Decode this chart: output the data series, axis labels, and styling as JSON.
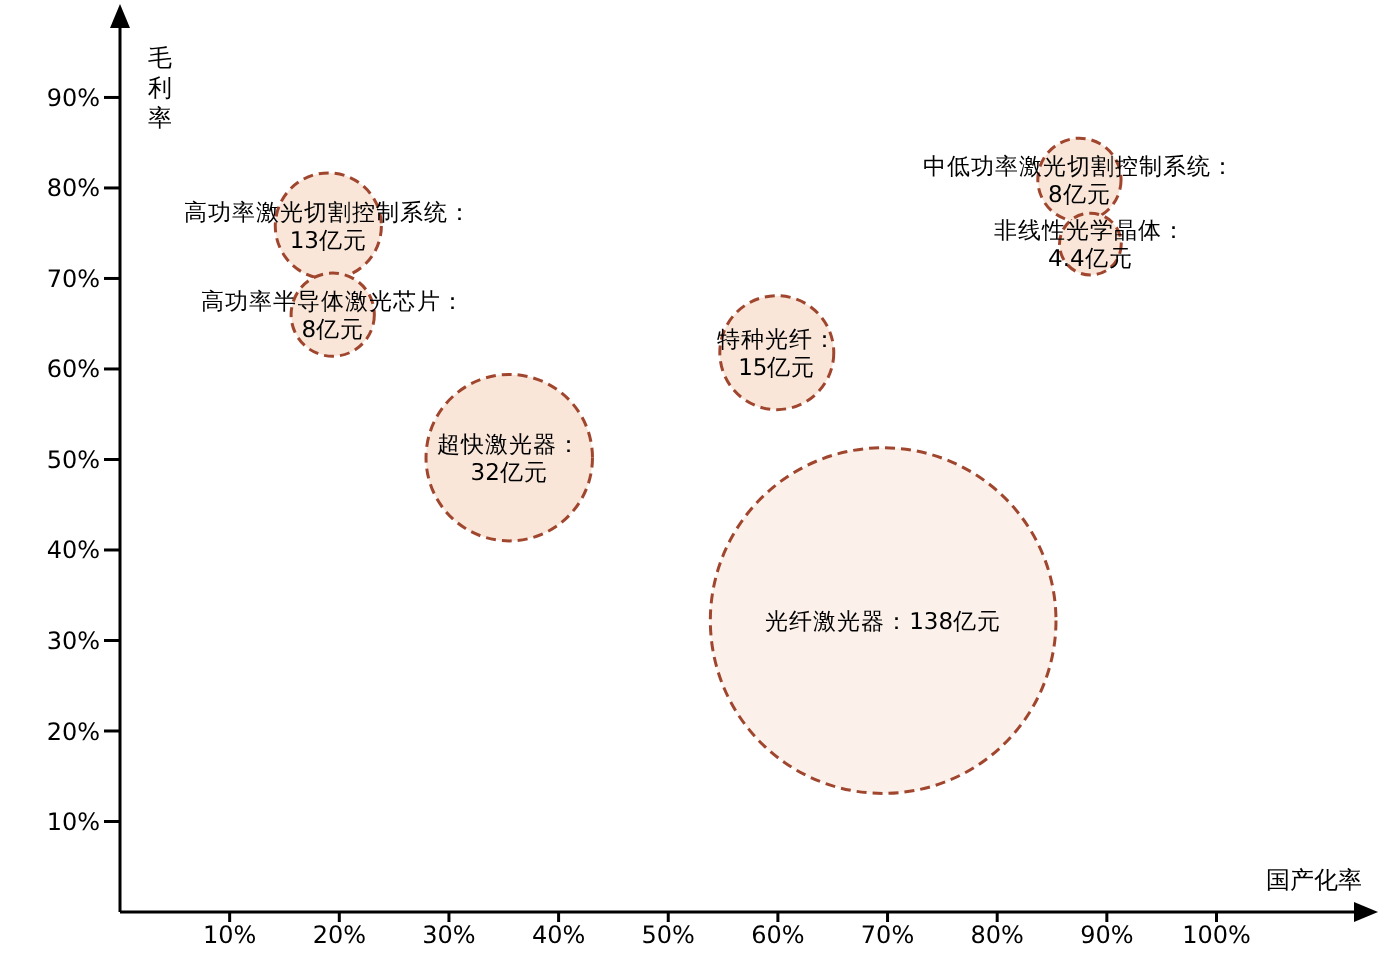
{
  "chart_data": {
    "type": "bubble",
    "xlabel": "国产化率",
    "ylabel": "毛利率",
    "xlim": [
      0,
      114
    ],
    "ylim": [
      0,
      99
    ],
    "xticks": [
      {
        "value": 10,
        "label": "10%"
      },
      {
        "value": 20,
        "label": "20%"
      },
      {
        "value": 30,
        "label": "30%"
      },
      {
        "value": 40,
        "label": "40%"
      },
      {
        "value": 50,
        "label": "50%"
      },
      {
        "value": 60,
        "label": "60%"
      },
      {
        "value": 70,
        "label": "70%"
      },
      {
        "value": 80,
        "label": "80%"
      },
      {
        "value": 90,
        "label": "90%"
      },
      {
        "value": 100,
        "label": "100%"
      }
    ],
    "yticks": [
      {
        "value": 10,
        "label": "10%"
      },
      {
        "value": 20,
        "label": "20%"
      },
      {
        "value": 30,
        "label": "30%"
      },
      {
        "value": 40,
        "label": "40%"
      },
      {
        "value": 50,
        "label": "50%"
      },
      {
        "value": 60,
        "label": "60%"
      },
      {
        "value": 70,
        "label": "70%"
      },
      {
        "value": 80,
        "label": "80%"
      },
      {
        "value": 90,
        "label": "90%"
      }
    ],
    "grid": false,
    "legend": false,
    "line_style": "dashed",
    "series": [
      {
        "color": "#a0462e",
        "x": [
          19,
          19.4,
          35.5,
          59.9,
          69.6,
          87.5,
          88.5
        ],
        "values": [
          75.8,
          66,
          50.2,
          61.8,
          32.2,
          80.9,
          73.8
        ],
        "sizes": [
          13,
          8,
          32,
          15,
          138,
          8,
          4.4
        ],
        "colors": [
          "#f9e6d9",
          "#f9e6d9",
          "#f9e6d9",
          "#f9e6d9",
          "#fcf1ea",
          "#f9e6d9",
          "#f9e6d9"
        ],
        "value_labels": [
          "高功率激光切割控制系统：\n13亿元",
          "高功率半导体激光芯片：\n8亿元",
          "超快激光器：\n32亿元",
          "特种光纤：\n15亿元",
          "光纤激光器：138亿元",
          "中低功率激光切割控制系统：\n8亿元",
          "非线性光学晶体：\n4.4亿元"
        ]
      }
    ]
  }
}
